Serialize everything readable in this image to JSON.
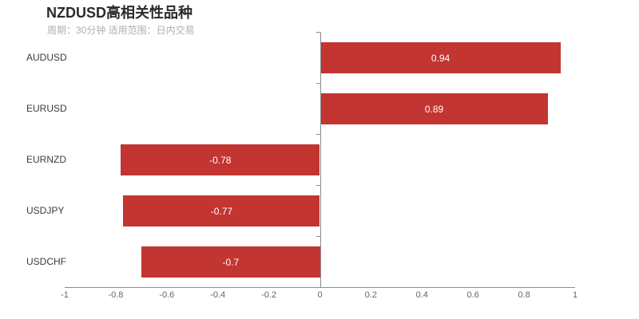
{
  "header": {
    "title": "NZDUSD高相关性品种",
    "subtitle": "周期：30分钟 适用范围：日内交易"
  },
  "chart_data": {
    "type": "bar",
    "orientation": "horizontal",
    "title": "NZDUSD高相关性品种",
    "subtitle": "周期：30分钟 适用范围：日内交易",
    "categories": [
      "AUDUSD",
      "EURUSD",
      "EURNZD",
      "USDJPY",
      "USDCHF"
    ],
    "values": [
      0.94,
      0.89,
      -0.78,
      -0.77,
      -0.7
    ],
    "value_labels": [
      "0.94",
      "0.89",
      "-0.78",
      "-0.77",
      "-0.7"
    ],
    "value_label_position": "inside-center",
    "xlim": [
      -1,
      1
    ],
    "x_tick_labels": [
      "-1",
      "-0.8",
      "-0.6",
      "-0.4",
      "-0.2",
      "0",
      "0.2",
      "0.4",
      "0.6",
      "0.8",
      "1"
    ],
    "x_tick_values": [
      -1,
      -0.8,
      -0.6,
      -0.4,
      -0.2,
      0,
      0.2,
      0.4,
      0.6,
      0.8,
      1
    ],
    "grid": "off",
    "legend": "none",
    "colors": {
      "bar": "#c23531",
      "axis_line": "#8b8b8b",
      "category_label": "#3c3c3c",
      "tick_label": "#666666",
      "value_label": "#ffffff",
      "title": "#2a2a2a",
      "subtitle": "#aab0b6",
      "background": "#ffffff"
    }
  }
}
